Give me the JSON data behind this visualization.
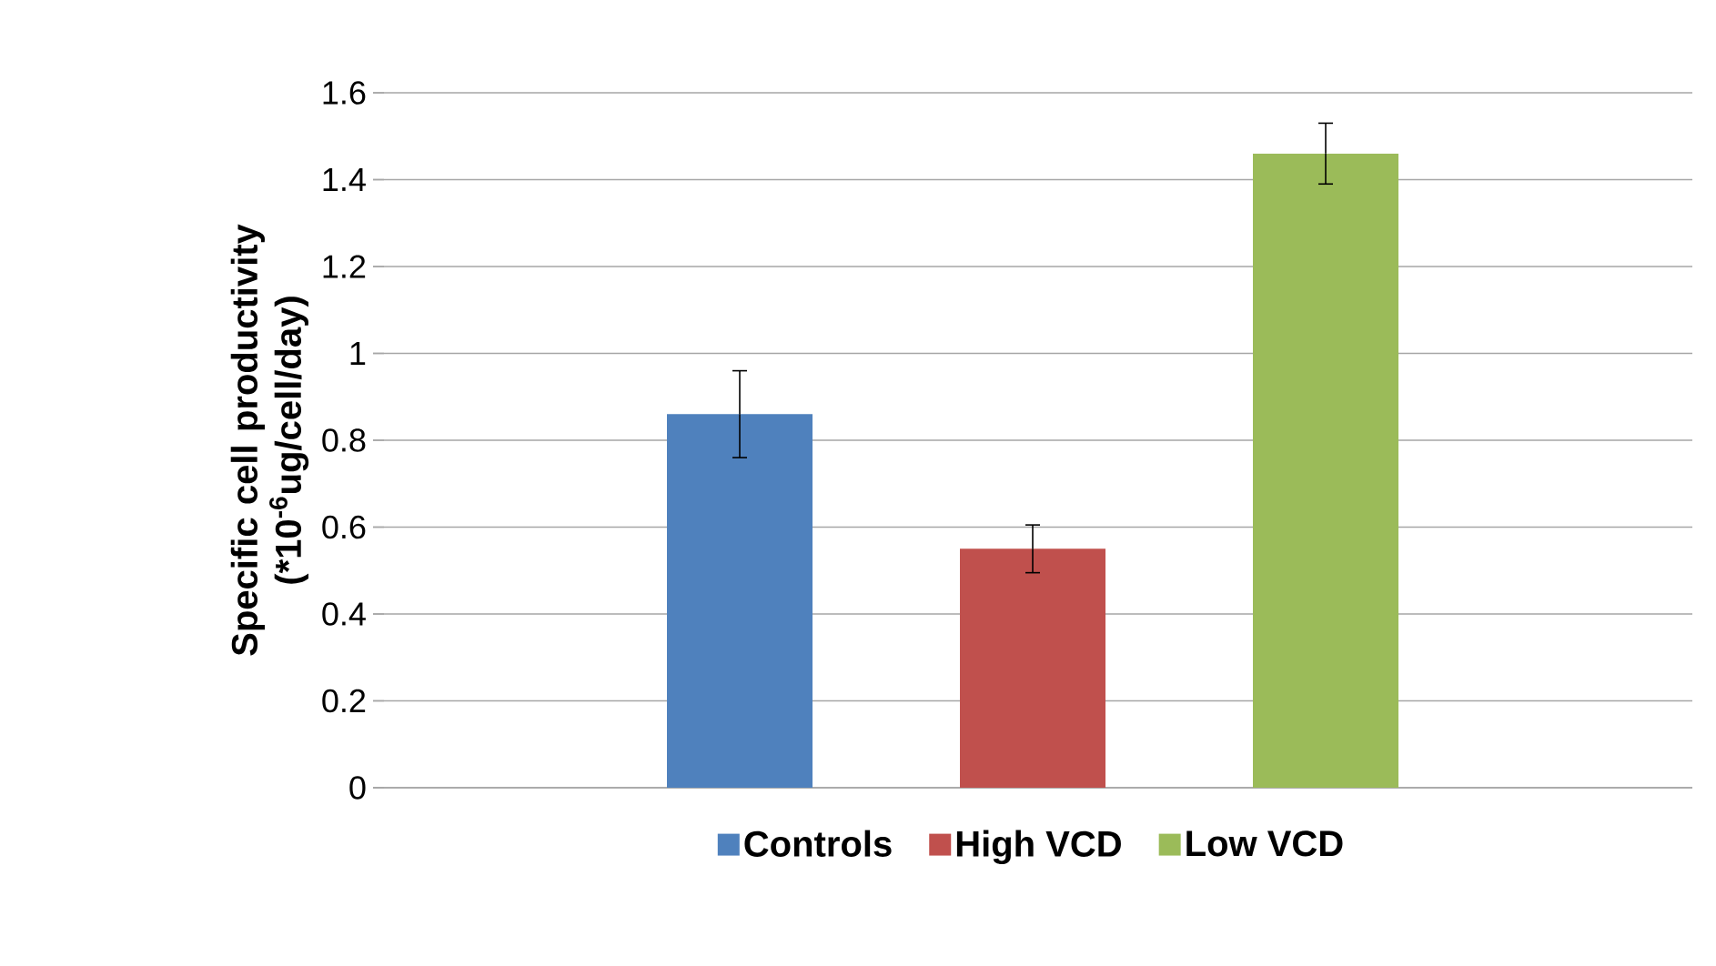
{
  "chart_data": {
    "type": "bar",
    "ylabel": "Specific cell productivity (*10$^{-6}$ug/cell/day)",
    "categories": [
      null
    ],
    "series": [
      {
        "name": "Controls",
        "color": "#4f81bd",
        "values": [
          0.86
        ],
        "errors": [
          0.1
        ]
      },
      {
        "name": "High VCD",
        "color": "#c0504d",
        "values": [
          0.55
        ],
        "errors": [
          0.055
        ]
      },
      {
        "name": "Low VCD",
        "color": "#9bbb59",
        "values": [
          1.46
        ],
        "errors": [
          0.07
        ]
      }
    ],
    "ylim": [
      0,
      1.6
    ],
    "yticks": [
      0,
      0.2,
      0.4,
      0.6,
      0.8,
      1,
      1.2,
      1.4,
      1.6
    ],
    "grid": "y",
    "legend": "bottom"
  }
}
